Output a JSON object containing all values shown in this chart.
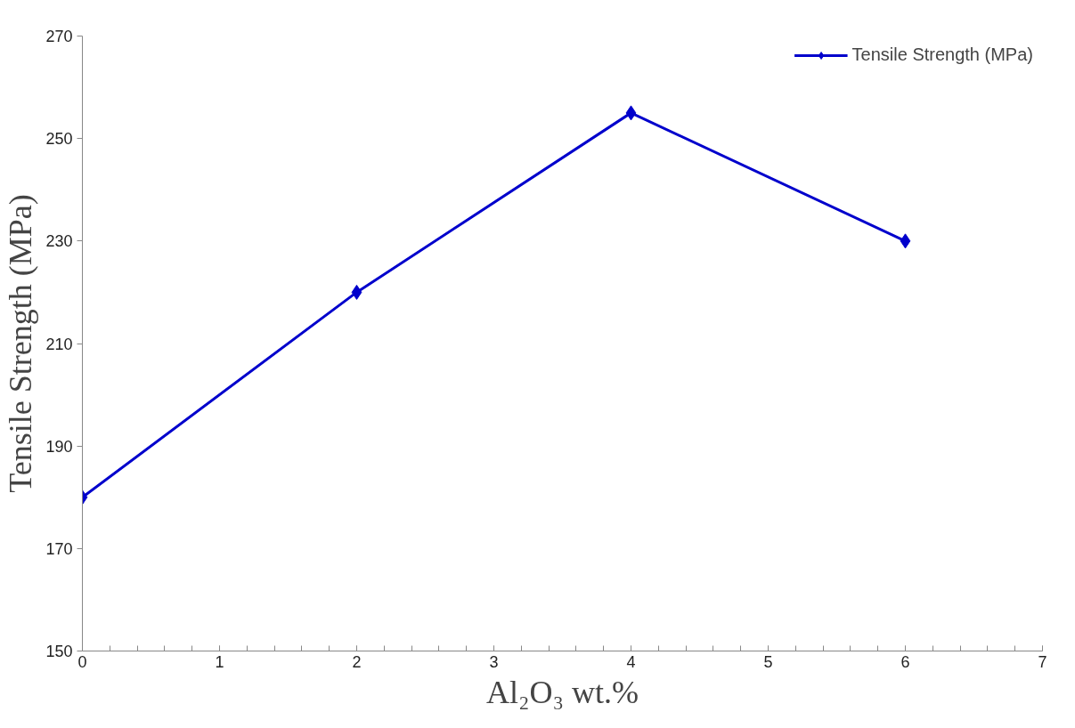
{
  "chart_data": {
    "type": "line",
    "xlabel": "Al₂O₃ wt.%",
    "ylabel": "Tensile Strength (MPa)",
    "x": [
      0,
      2,
      4,
      6
    ],
    "series": [
      {
        "name": "Tensile Strength (MPa)",
        "color": "#0000cc",
        "values": [
          180,
          220,
          255,
          230
        ]
      }
    ],
    "xlim": [
      0,
      7
    ],
    "xticks": [
      0,
      1,
      2,
      3,
      4,
      5,
      6,
      7
    ],
    "ylim": [
      150,
      270
    ],
    "yticks": [
      150,
      170,
      190,
      210,
      230,
      250,
      270
    ],
    "grid": false,
    "legend": "top right",
    "marker": "diamond",
    "line_style": "solid"
  }
}
